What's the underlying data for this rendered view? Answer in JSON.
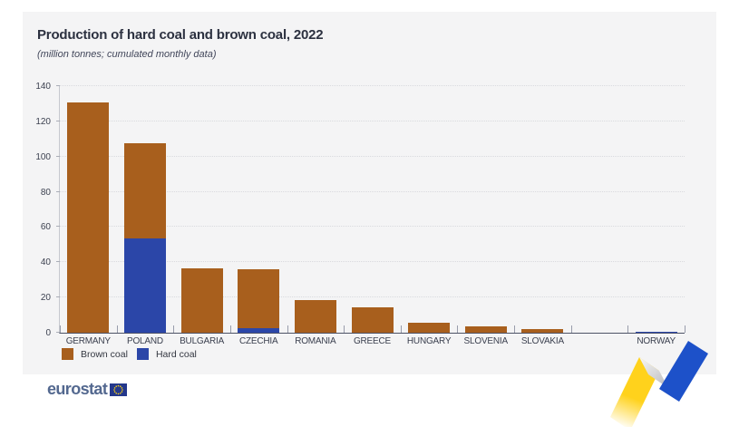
{
  "header": {
    "title": "Production of hard coal and brown coal, 2022",
    "subtitle": "(million tonnes; cumulated monthly data)"
  },
  "chart_data": {
    "type": "bar",
    "stacked": true,
    "title": "Production of hard coal and brown coal, 2022",
    "subtitle": "(million tonnes; cumulated monthly data)",
    "categories": [
      "GERMANY",
      "POLAND",
      "BULGARIA",
      "CZECHIA",
      "ROMANIA",
      "GREECE",
      "HUNGARY",
      "SLOVENIA",
      "SLOVAKIA",
      "",
      "NORWAY"
    ],
    "series": [
      {
        "name": "Brown coal",
        "color": "#a85f1d",
        "values": [
          131,
          54,
          36.5,
          33.5,
          18.5,
          14.5,
          5.7,
          3.4,
          1.9,
          0,
          0
        ]
      },
      {
        "name": "Hard coal",
        "color": "#2b46a8",
        "values": [
          0,
          53.5,
          0,
          2.5,
          0,
          0,
          0,
          0,
          0,
          0,
          0.6
        ]
      }
    ],
    "xlabel": "",
    "ylabel": "",
    "ylim": [
      0,
      140
    ],
    "yticks": [
      0,
      20,
      40,
      60,
      80,
      100,
      120,
      140
    ],
    "grid": "horizontal dotted",
    "legend_position": "bottom-left",
    "note": "empty category slot separates EU countries from NORWAY; hard coal drawn at base of stack"
  },
  "legend": {
    "items": [
      {
        "label": "Brown coal",
        "color": "#a85f1d"
      },
      {
        "label": "Hard coal",
        "color": "#2b46a8"
      }
    ]
  },
  "footer": {
    "logo_text": "eurostat"
  },
  "colors": {
    "page_background": "#ffffff",
    "card_background": "#f4f4f5",
    "brown_coal": "#a85f1d",
    "hard_coal": "#2b46a8",
    "axis_line": "#4d5266",
    "axis_text": "#3a3f4e",
    "title_text": "#2c3140",
    "logo_blue": "#53688f",
    "eu_flag_blue": "#24388c",
    "ribbon_yellow": "#ffd21c",
    "ribbon_blue": "#1d51c9"
  }
}
